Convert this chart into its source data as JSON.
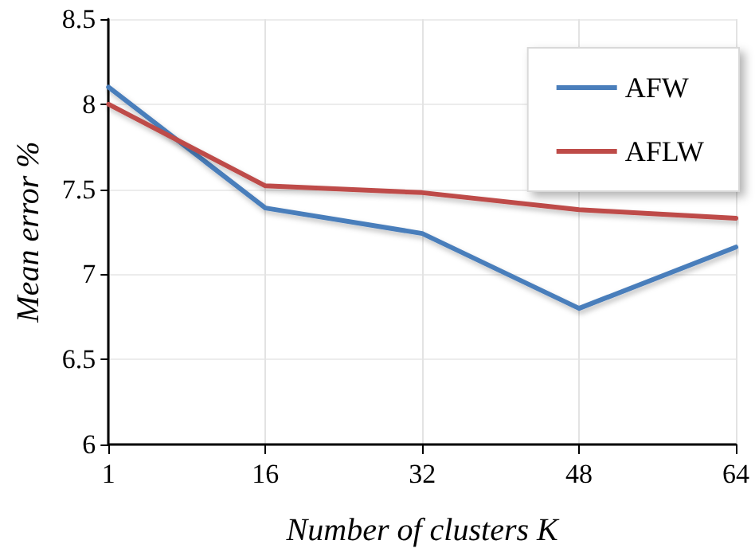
{
  "chart_data": {
    "type": "line",
    "xlabel": "Number of clusters K",
    "ylabel": "Mean error %",
    "categories": [
      "1",
      "16",
      "32",
      "48",
      "64"
    ],
    "series": [
      {
        "name": "AFW",
        "color": "#4a7ebb",
        "values": [
          8.1,
          7.39,
          7.24,
          6.8,
          7.16
        ]
      },
      {
        "name": "AFLW",
        "color": "#be4b48",
        "values": [
          8.0,
          7.52,
          7.48,
          7.38,
          7.33
        ]
      }
    ],
    "ylim": [
      6,
      8.5
    ],
    "yticks": [
      6,
      6.5,
      7,
      7.5,
      8,
      8.5
    ],
    "grid": true,
    "legend": "top right",
    "marker": "none",
    "line_style": "solid"
  }
}
